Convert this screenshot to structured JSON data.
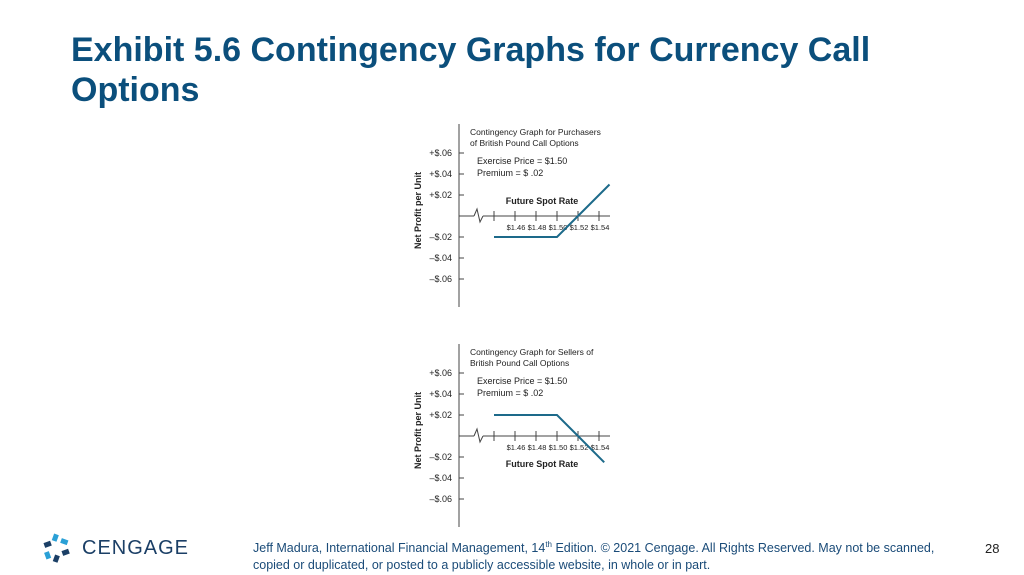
{
  "slide": {
    "title": "Exhibit 5.6 Contingency Graphs for Currency Call Options",
    "page_number": "28",
    "footer_prefix": "Jeff Madura, International Financial Management, 14",
    "footer_sup": "th",
    "footer_suffix": " Edition. © 2021 Cengage. All Rights Reserved. May not be scanned, copied or duplicated, or posted to a publicly accessible website, in whole or in part.",
    "logo_text": "CENGAGE",
    "brand_color": "#0b4f7c",
    "line_color": "#1d6a8a"
  },
  "chart_data": [
    {
      "type": "line",
      "title_lines": [
        "Contingency Graph for Purchasers",
        "of British Pound Call Options"
      ],
      "params_lines": [
        "Exercise Price = $1.50",
        "Premium        = $  .02"
      ],
      "xlabel": "Future Spot Rate",
      "ylabel": "Net Profit per Unit",
      "x_ticks": [
        "$1.46",
        "$1.48",
        "$1.50",
        "$1.52",
        "$1.54"
      ],
      "y_ticks": [
        "+$.06",
        "+$.04",
        "+$.02",
        "–$.02",
        "–$.04",
        "–$.06"
      ],
      "ylim": [
        -0.06,
        0.06
      ],
      "series": [
        {
          "x": [
            1.44,
            1.5,
            1.52,
            1.55
          ],
          "values": [
            -0.02,
            -0.02,
            0.0,
            0.03
          ]
        }
      ]
    },
    {
      "type": "line",
      "title_lines": [
        "Contingency Graph for Sellers of",
        "British Pound Call Options"
      ],
      "params_lines": [
        "Exercise Price = $1.50",
        "Premium        = $  .02"
      ],
      "xlabel": "Future Spot Rate",
      "ylabel": "Net Profit per Unit",
      "x_ticks": [
        "$1.46",
        "$1.48",
        "$1.50",
        "$1.52",
        "$1.54"
      ],
      "y_ticks": [
        "+$.06",
        "+$.04",
        "+$.02",
        "–$.02",
        "–$.04",
        "–$.06"
      ],
      "ylim": [
        -0.06,
        0.06
      ],
      "series": [
        {
          "x": [
            1.44,
            1.5,
            1.52,
            1.545
          ],
          "values": [
            0.02,
            0.02,
            0.0,
            -0.025
          ]
        }
      ]
    }
  ]
}
